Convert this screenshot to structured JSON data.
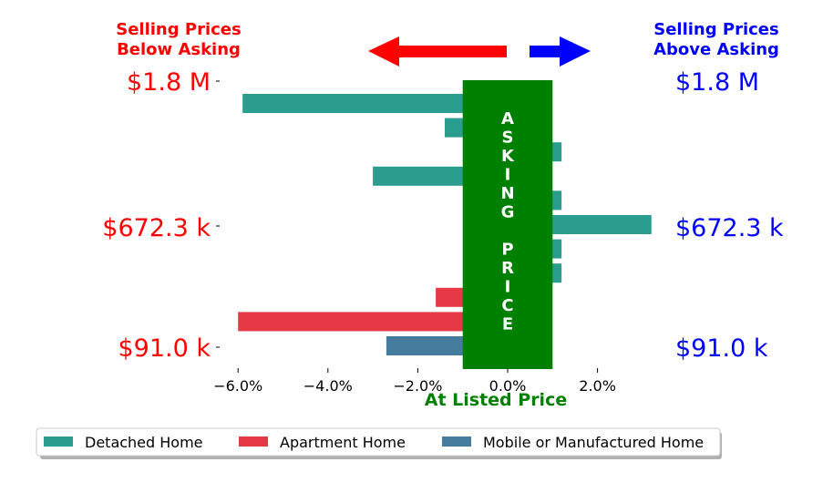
{
  "chart_data": {
    "type": "bar",
    "orientation": "horizontal",
    "xlabel": "At Listed Price",
    "xlim": [
      -7.5,
      4.5
    ],
    "x_ticks": [
      -6,
      -4,
      -2,
      0,
      2
    ],
    "x_tick_labels": [
      "−6.0%",
      "−4.0%",
      "−2.0%",
      "0.0%",
      "2.0%"
    ],
    "left_heading": [
      "Selling Prices",
      "Below Asking"
    ],
    "right_heading": [
      "Selling Prices",
      "Above Asking"
    ],
    "center_band_text": "ASKING PRICE",
    "price_labels": [
      "$1.8 M",
      "$672.3 k",
      "$91.0 k"
    ],
    "series": [
      {
        "name": "Detached Home",
        "color": "#2a9d8f"
      },
      {
        "name": "Apartment Home",
        "color": "#e63946"
      },
      {
        "name": "Mobile or Manufactured Home",
        "color": "#457b9d"
      }
    ],
    "bars": [
      {
        "series": 0,
        "value": -5.9
      },
      {
        "series": 0,
        "value": -1.4
      },
      {
        "series": 0,
        "value": 1.2
      },
      {
        "series": 0,
        "value": -3.0
      },
      {
        "series": 0,
        "value": 1.2
      },
      {
        "series": 0,
        "value": 3.2
      },
      {
        "series": 0,
        "value": 1.2
      },
      {
        "series": 0,
        "value": 1.2
      },
      {
        "series": 1,
        "value": -1.6
      },
      {
        "series": 1,
        "value": -6.0
      },
      {
        "series": 2,
        "value": -2.7
      }
    ],
    "colors": {
      "left": "#ff0000",
      "right": "#0000ff",
      "band": "#008000"
    },
    "legend_position": "bottom"
  }
}
